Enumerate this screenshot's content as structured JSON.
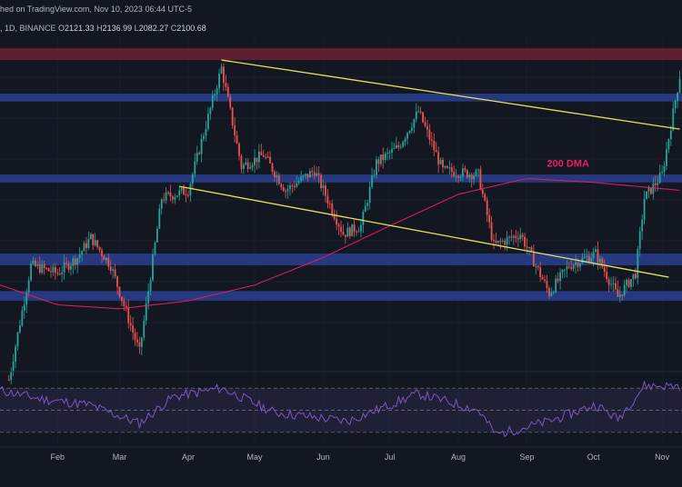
{
  "header": {
    "line1": "hed on TradingView.com, Nov 10, 2023 06:44 UTC-5",
    "line2_prefix": ", 1D, BINANCE",
    "open_label": "O",
    "open_value": "2121.33",
    "high_label": "H",
    "high_value": "2136.99",
    "low_label": "L",
    "low_value": "2082.27",
    "close_label": "C",
    "close_value": "2100.68"
  },
  "colors": {
    "background": "#131722",
    "up": "#26a69a",
    "down": "#ef5350",
    "dma": "#e91e63",
    "trendline": "#e6e05a",
    "support_zone": "#2a3f8f",
    "resistance_zone": "#6b2230",
    "rsi": "#7e57c2"
  },
  "chart_data": {
    "type": "candlestick",
    "indicator_label": "200 DMA",
    "x_ticks": [
      "Feb",
      "Mar",
      "Apr",
      "May",
      "Jun",
      "Jul",
      "Aug",
      "Sep",
      "Oct",
      "Nov"
    ],
    "price_path": [
      {
        "date": "2023-01-10",
        "price": 1330
      },
      {
        "date": "2023-01-20",
        "price": 1620
      },
      {
        "date": "2023-02-01",
        "price": 1600
      },
      {
        "date": "2023-02-10",
        "price": 1640
      },
      {
        "date": "2023-02-16",
        "price": 1690
      },
      {
        "date": "2023-02-25",
        "price": 1620
      },
      {
        "date": "2023-03-10",
        "price": 1400
      },
      {
        "date": "2023-03-20",
        "price": 1790
      },
      {
        "date": "2023-04-01",
        "price": 1810
      },
      {
        "date": "2023-04-16",
        "price": 2120
      },
      {
        "date": "2023-04-25",
        "price": 1870
      },
      {
        "date": "2023-05-05",
        "price": 1900
      },
      {
        "date": "2023-05-15",
        "price": 1810
      },
      {
        "date": "2023-05-28",
        "price": 1860
      },
      {
        "date": "2023-06-10",
        "price": 1700
      },
      {
        "date": "2023-06-18",
        "price": 1720
      },
      {
        "date": "2023-06-25",
        "price": 1880
      },
      {
        "date": "2023-07-05",
        "price": 1920
      },
      {
        "date": "2023-07-14",
        "price": 2010
      },
      {
        "date": "2023-07-25",
        "price": 1860
      },
      {
        "date": "2023-08-10",
        "price": 1850
      },
      {
        "date": "2023-08-17",
        "price": 1670
      },
      {
        "date": "2023-08-29",
        "price": 1700
      },
      {
        "date": "2023-09-11",
        "price": 1550
      },
      {
        "date": "2023-09-20",
        "price": 1620
      },
      {
        "date": "2023-10-02",
        "price": 1650
      },
      {
        "date": "2023-10-12",
        "price": 1540
      },
      {
        "date": "2023-10-20",
        "price": 1600
      },
      {
        "date": "2023-10-24",
        "price": 1790
      },
      {
        "date": "2023-11-01",
        "price": 1850
      },
      {
        "date": "2023-11-09",
        "price": 2100
      }
    ],
    "dma_path": [
      {
        "date": "2023-01-01",
        "price": 1580
      },
      {
        "date": "2023-02-01",
        "price": 1520
      },
      {
        "date": "2023-03-01",
        "price": 1510
      },
      {
        "date": "2023-04-01",
        "price": 1530
      },
      {
        "date": "2023-05-01",
        "price": 1570
      },
      {
        "date": "2023-06-01",
        "price": 1640
      },
      {
        "date": "2023-07-01",
        "price": 1720
      },
      {
        "date": "2023-08-01",
        "price": 1800
      },
      {
        "date": "2023-09-01",
        "price": 1840
      },
      {
        "date": "2023-10-01",
        "price": 1830
      },
      {
        "date": "2023-11-09",
        "price": 1810
      }
    ],
    "trendlines": [
      {
        "start": {
          "date": "2023-04-16",
          "price": 2140
        },
        "end": {
          "date": "2023-11-09",
          "price": 1965
        }
      },
      {
        "start": {
          "date": "2023-03-28",
          "price": 1820
        },
        "end": {
          "date": "2023-11-04",
          "price": 1590
        }
      }
    ],
    "zones": [
      {
        "kind": "resistance",
        "low": 2140,
        "high": 2170
      },
      {
        "kind": "support",
        "low": 2035,
        "high": 2055
      },
      {
        "kind": "support",
        "low": 1830,
        "high": 1850
      },
      {
        "kind": "support",
        "low": 1620,
        "high": 1650
      },
      {
        "kind": "support",
        "low": 1530,
        "high": 1555
      }
    ],
    "price_range": [
      1360,
      2200
    ],
    "x_range": [
      "2023-01-06",
      "2023-11-10"
    ],
    "rsi_range": [
      20,
      80
    ],
    "rsi_levels": [
      70,
      50,
      30
    ],
    "rsi_path": [
      {
        "date": "2023-01-06",
        "rsi": 68
      },
      {
        "date": "2023-01-25",
        "rsi": 60
      },
      {
        "date": "2023-02-15",
        "rsi": 55
      },
      {
        "date": "2023-03-10",
        "rsi": 38
      },
      {
        "date": "2023-03-25",
        "rsi": 62
      },
      {
        "date": "2023-04-16",
        "rsi": 70
      },
      {
        "date": "2023-05-10",
        "rsi": 48
      },
      {
        "date": "2023-06-12",
        "rsi": 40
      },
      {
        "date": "2023-07-14",
        "rsi": 65
      },
      {
        "date": "2023-08-10",
        "rsi": 50
      },
      {
        "date": "2023-08-18",
        "rsi": 28
      },
      {
        "date": "2023-09-11",
        "rsi": 40
      },
      {
        "date": "2023-10-02",
        "rsi": 55
      },
      {
        "date": "2023-10-12",
        "rsi": 42
      },
      {
        "date": "2023-10-24",
        "rsi": 72
      },
      {
        "date": "2023-11-09",
        "rsi": 72
      }
    ]
  }
}
